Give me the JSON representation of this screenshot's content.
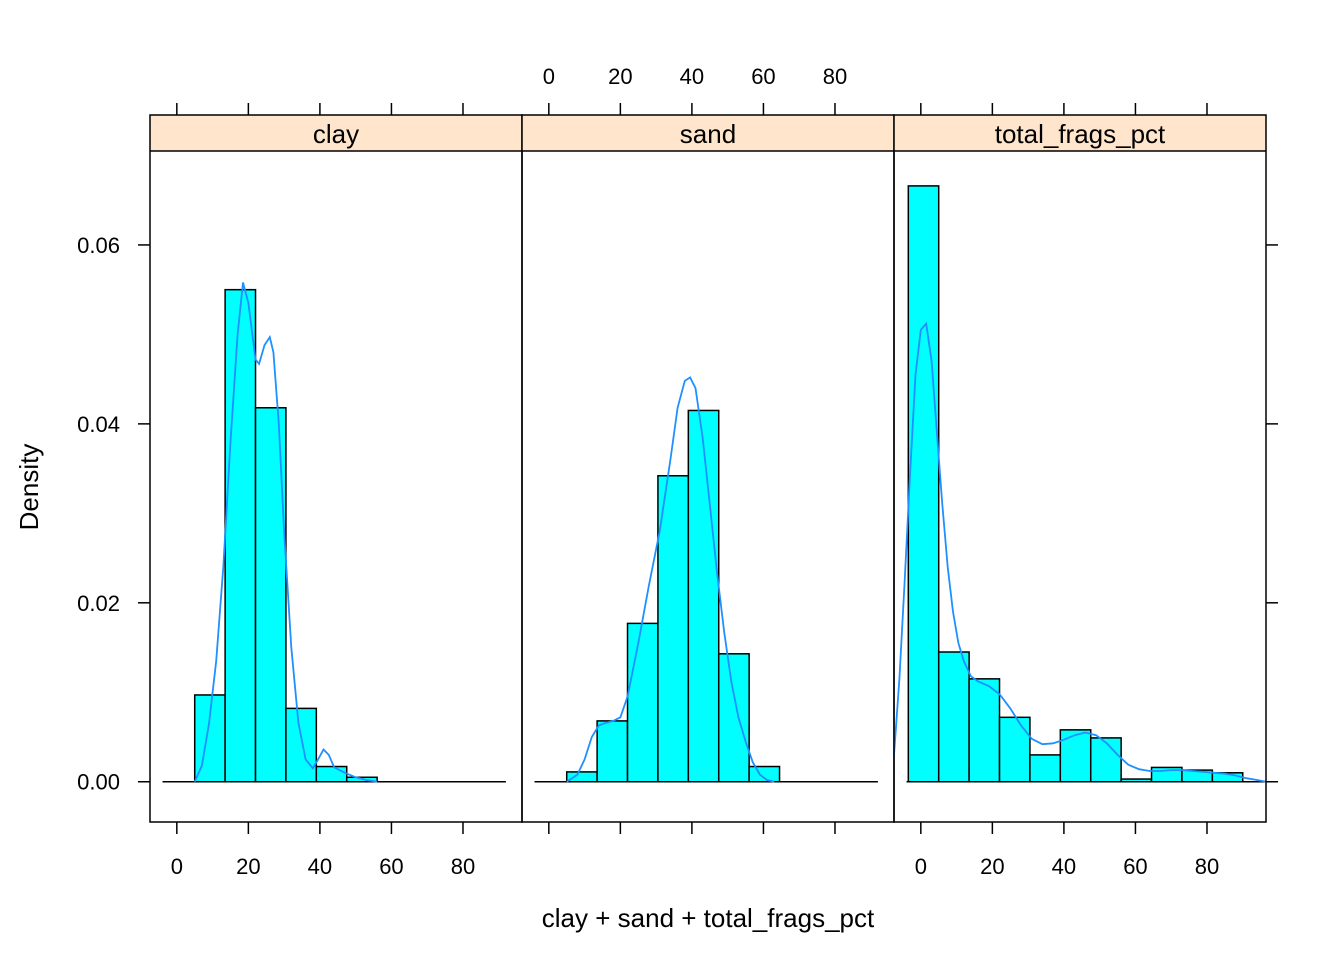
{
  "chart_data": {
    "type": "bar",
    "xlabel": "clay + sand + total_frags_pct",
    "ylabel": "Density",
    "ylim": [
      -0.0045,
      0.0705
    ],
    "xlim": [
      -7.5,
      96.5
    ],
    "x_ticks": [
      0,
      20,
      40,
      60,
      80
    ],
    "y_ticks": [
      0.0,
      0.02,
      0.04,
      0.06
    ],
    "y_tick_labels": [
      "0.00",
      "0.02",
      "0.04",
      "0.06"
    ],
    "x_tick_labels": [
      "0",
      "20",
      "40",
      "60",
      "80"
    ],
    "colors": {
      "bar_fill": "#00ffff",
      "density_line": "#1e90ff",
      "strip_bg": "#ffe5cc"
    },
    "panels": [
      {
        "name": "clay",
        "bin_edges": [
          5,
          13.5,
          22,
          30.5,
          39,
          47.5,
          56
        ],
        "values": [
          0.0097,
          0.055,
          0.0418,
          0.0082,
          0.0017,
          0.0005
        ],
        "baseline_range": [
          -4,
          92
        ],
        "density_curve": [
          [
            5,
            0
          ],
          [
            7,
            0.0018
          ],
          [
            9,
            0.0065
          ],
          [
            11,
            0.0135
          ],
          [
            13,
            0.024
          ],
          [
            15,
            0.038
          ],
          [
            17,
            0.05
          ],
          [
            18.5,
            0.0558
          ],
          [
            20,
            0.0535
          ],
          [
            22,
            0.0472
          ],
          [
            23,
            0.0467
          ],
          [
            24.5,
            0.0488
          ],
          [
            26,
            0.0497
          ],
          [
            27,
            0.048
          ],
          [
            28.5,
            0.04
          ],
          [
            30,
            0.028
          ],
          [
            32,
            0.015
          ],
          [
            34,
            0.0066
          ],
          [
            36,
            0.0025
          ],
          [
            38,
            0.0015
          ],
          [
            39.5,
            0.0025
          ],
          [
            41,
            0.0036
          ],
          [
            42.5,
            0.003
          ],
          [
            44,
            0.0016
          ],
          [
            47,
            0.001
          ],
          [
            50,
            0.0005
          ],
          [
            53,
            0.0002
          ],
          [
            56,
            0
          ]
        ]
      },
      {
        "name": "sand",
        "bin_edges": [
          5,
          13.5,
          22,
          30.5,
          39,
          47.5,
          56,
          64.5
        ],
        "values": [
          0.0011,
          0.0068,
          0.0177,
          0.0342,
          0.0415,
          0.0143,
          0.0017
        ],
        "baseline_range": [
          -4,
          92
        ],
        "density_curve": [
          [
            5,
            0
          ],
          [
            8,
            0.0008
          ],
          [
            10,
            0.0025
          ],
          [
            12,
            0.005
          ],
          [
            14,
            0.0063
          ],
          [
            16,
            0.0066
          ],
          [
            18,
            0.0068
          ],
          [
            20,
            0.0072
          ],
          [
            22,
            0.0095
          ],
          [
            25,
            0.0155
          ],
          [
            28,
            0.022
          ],
          [
            31,
            0.028
          ],
          [
            34,
            0.036
          ],
          [
            36,
            0.0418
          ],
          [
            38,
            0.0448
          ],
          [
            39.5,
            0.0452
          ],
          [
            41,
            0.044
          ],
          [
            43,
            0.0385
          ],
          [
            45,
            0.031
          ],
          [
            47,
            0.0235
          ],
          [
            49,
            0.0168
          ],
          [
            51,
            0.0112
          ],
          [
            53,
            0.0072
          ],
          [
            55,
            0.0045
          ],
          [
            57,
            0.0022
          ],
          [
            59,
            0.0008
          ],
          [
            61,
            0.0002
          ],
          [
            63,
            0
          ]
        ]
      },
      {
        "name": "total_frags_pct",
        "bin_edges": [
          -3.5,
          5,
          13.5,
          22,
          30.5,
          39,
          47.5,
          56,
          64.5,
          73,
          81.5,
          90
        ],
        "values": [
          0.0666,
          0.0145,
          0.0115,
          0.0072,
          0.003,
          0.0058,
          0.0049,
          0.0003,
          0.0016,
          0.0013,
          0.001
        ],
        "baseline_range": [
          -4,
          96.5
        ],
        "density_curve": [
          [
            -7.5,
            0.003
          ],
          [
            -6,
            0.0115
          ],
          [
            -4.5,
            0.0225
          ],
          [
            -3,
            0.0345
          ],
          [
            -1.5,
            0.0455
          ],
          [
            0,
            0.0505
          ],
          [
            1.5,
            0.0512
          ],
          [
            3,
            0.047
          ],
          [
            4.5,
            0.039
          ],
          [
            6,
            0.031
          ],
          [
            7.5,
            0.024
          ],
          [
            9,
            0.019
          ],
          [
            10.5,
            0.0155
          ],
          [
            12,
            0.0135
          ],
          [
            14,
            0.0118
          ],
          [
            16,
            0.0112
          ],
          [
            19,
            0.0107
          ],
          [
            22,
            0.0098
          ],
          [
            25,
            0.0082
          ],
          [
            28,
            0.0063
          ],
          [
            31,
            0.0048
          ],
          [
            34,
            0.0042
          ],
          [
            37,
            0.0043
          ],
          [
            40,
            0.0047
          ],
          [
            43,
            0.0052
          ],
          [
            46,
            0.0055
          ],
          [
            49,
            0.0052
          ],
          [
            52,
            0.0043
          ],
          [
            55,
            0.003
          ],
          [
            58,
            0.0019
          ],
          [
            61,
            0.0014
          ],
          [
            64,
            0.0012
          ],
          [
            67,
            0.0012
          ],
          [
            70,
            0.0013
          ],
          [
            73,
            0.0013
          ],
          [
            76,
            0.0012
          ],
          [
            79,
            0.0011
          ],
          [
            82,
            0.001
          ],
          [
            85,
            0.0009
          ],
          [
            88,
            0.0007
          ],
          [
            91,
            0.0004
          ],
          [
            94,
            0.0002
          ],
          [
            96.5,
            0
          ]
        ]
      }
    ]
  }
}
